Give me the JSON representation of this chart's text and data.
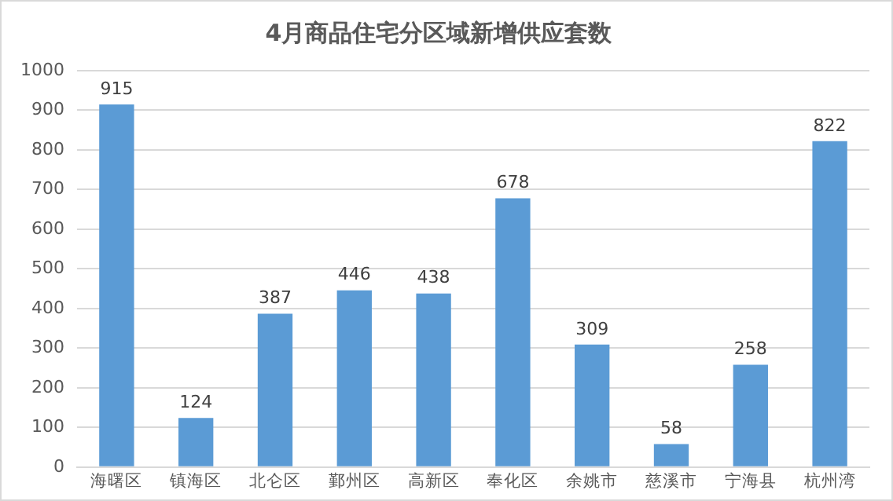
{
  "chart_data": {
    "type": "bar",
    "title": "4月商品住宅分区域新增供应套数",
    "categories": [
      "海曙区",
      "镇海区",
      "北仑区",
      "鄞州区",
      "高新区",
      "奉化区",
      "余姚市",
      "慈溪市",
      "宁海县",
      "杭州湾"
    ],
    "series": [
      {
        "color": "#5b9bd5",
        "values": [
          915,
          124,
          387,
          446,
          438,
          678,
          309,
          58,
          258,
          822
        ]
      }
    ],
    "ylim": [
      0,
      1000
    ],
    "yticks": [
      0,
      100,
      200,
      300,
      400,
      500,
      600,
      700,
      800,
      900,
      1000
    ],
    "grid": "y",
    "data_labels": true,
    "legend": false
  }
}
